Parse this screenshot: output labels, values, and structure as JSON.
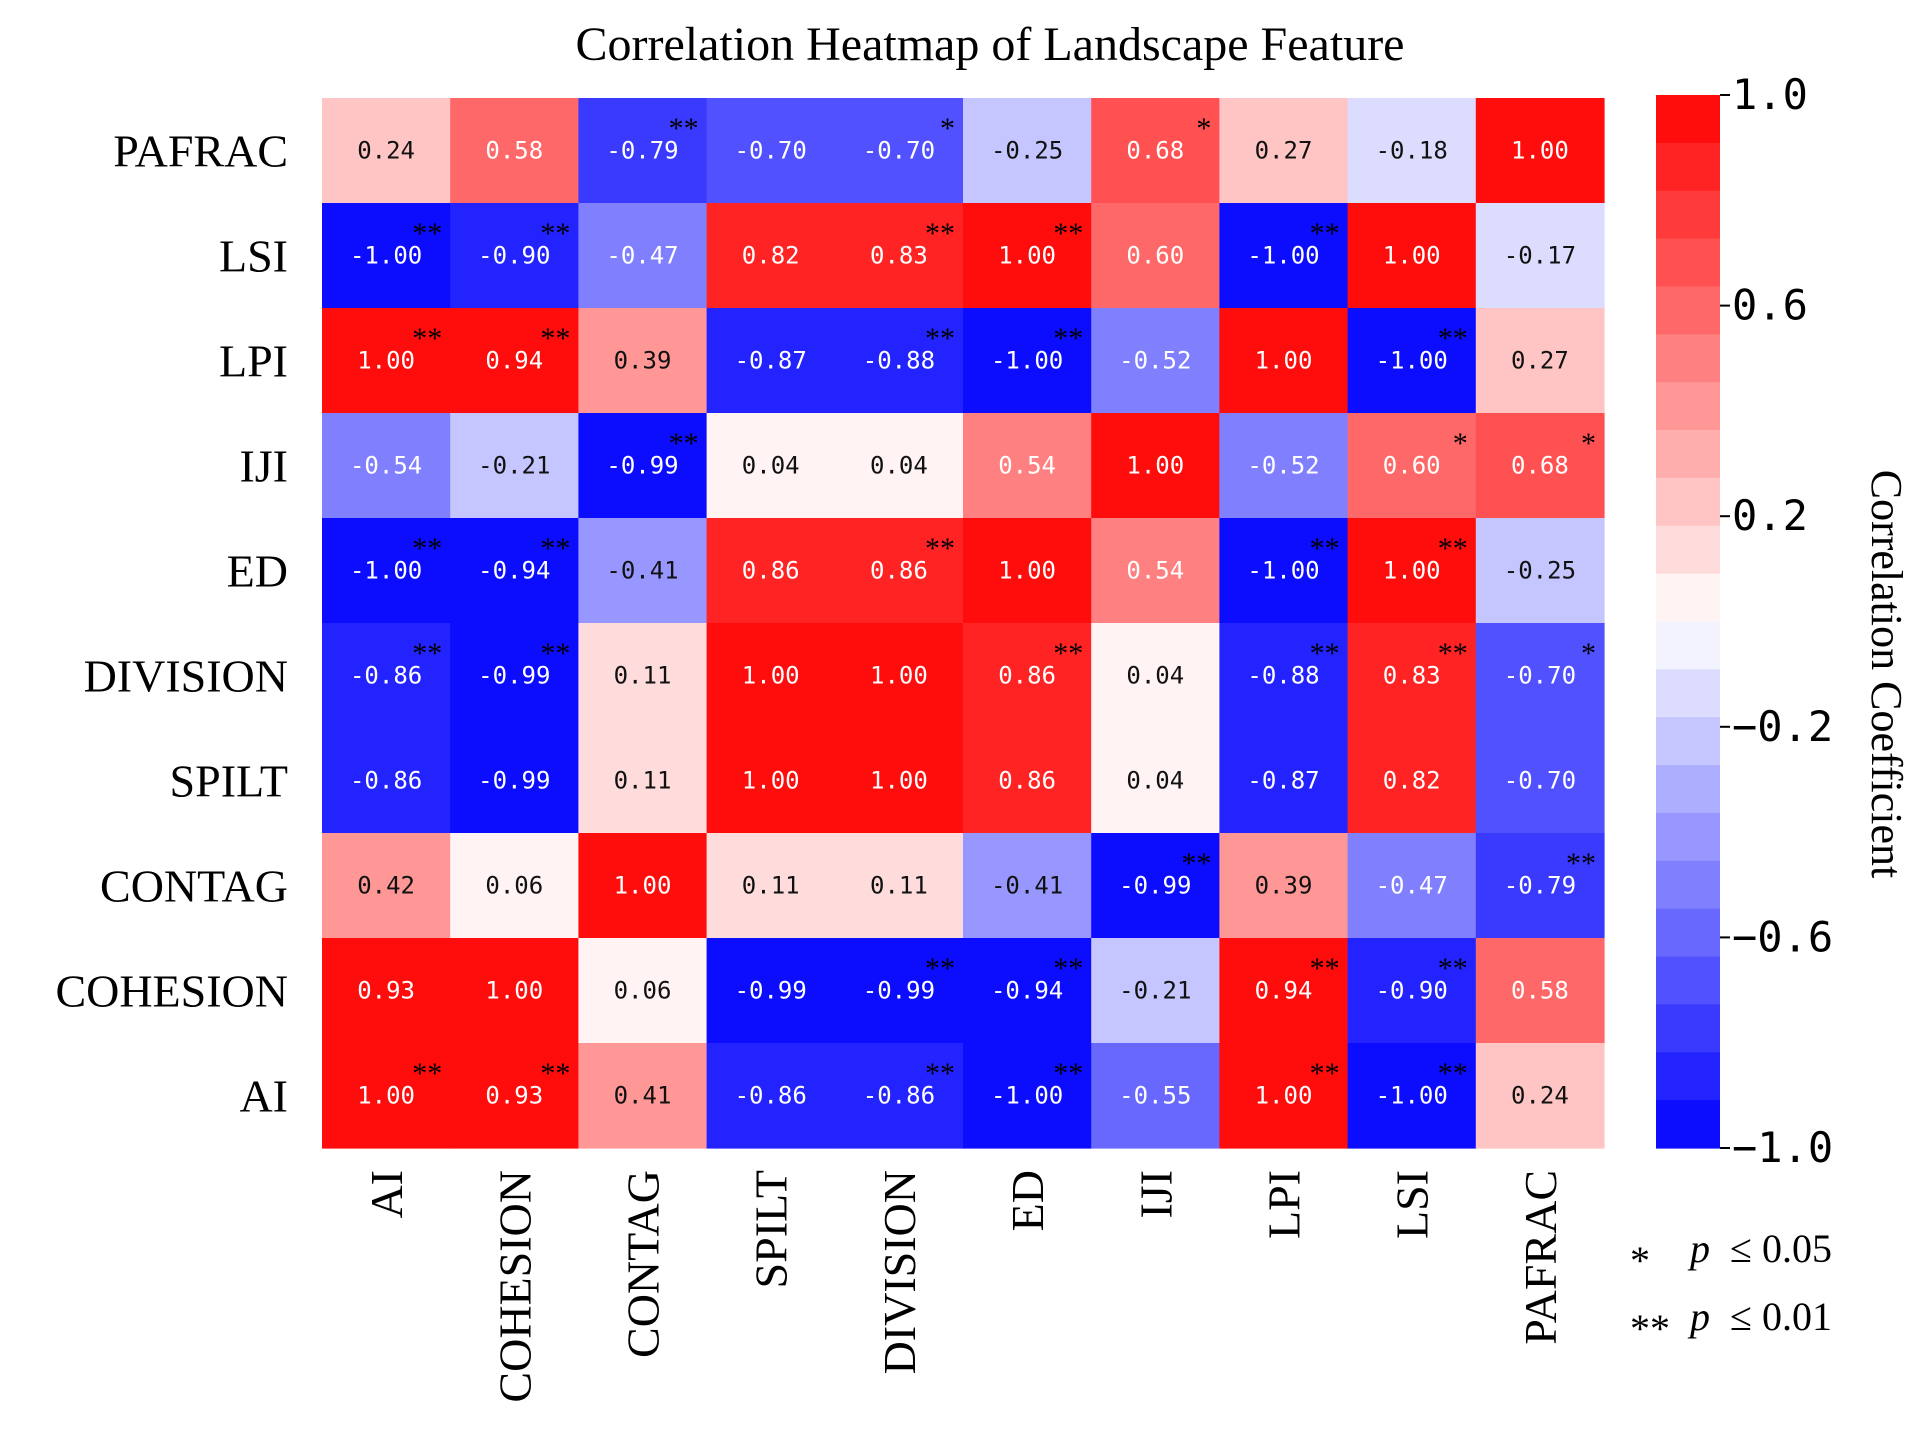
{
  "chart_data": {
    "type": "heatmap",
    "title": "Correlation Heatmap of  Landscape Feature",
    "x_labels": [
      "AI",
      "COHESION",
      "CONTAG",
      "SPILT",
      "DIVISION",
      "ED",
      "IJI",
      "LPI",
      "LSI",
      "PAFRAC"
    ],
    "y_labels": [
      "PAFRAC",
      "LSI",
      "LPI",
      "IJI",
      "ED",
      "DIVISION",
      "SPILT",
      "CONTAG",
      "COHESION",
      "AI"
    ],
    "values": [
      [
        0.24,
        0.58,
        -0.79,
        -0.7,
        -0.7,
        -0.25,
        0.68,
        0.27,
        -0.18,
        1.0
      ],
      [
        -1.0,
        -0.9,
        -0.47,
        0.82,
        0.83,
        1.0,
        0.6,
        -1.0,
        1.0,
        -0.17
      ],
      [
        1.0,
        0.94,
        0.39,
        -0.87,
        -0.88,
        -1.0,
        -0.52,
        1.0,
        -1.0,
        0.27
      ],
      [
        -0.54,
        -0.21,
        -0.99,
        0.04,
        0.04,
        0.54,
        1.0,
        -0.52,
        0.6,
        0.68
      ],
      [
        -1.0,
        -0.94,
        -0.41,
        0.86,
        0.86,
        1.0,
        0.54,
        -1.0,
        1.0,
        -0.25
      ],
      [
        -0.86,
        -0.99,
        0.11,
        1.0,
        1.0,
        0.86,
        0.04,
        -0.88,
        0.83,
        -0.7
      ],
      [
        -0.86,
        -0.99,
        0.11,
        1.0,
        1.0,
        0.86,
        0.04,
        -0.87,
        0.82,
        -0.7
      ],
      [
        0.42,
        0.06,
        1.0,
        0.11,
        0.11,
        -0.41,
        -0.99,
        0.39,
        -0.47,
        -0.79
      ],
      [
        0.93,
        1.0,
        0.06,
        -0.99,
        -0.99,
        -0.94,
        -0.21,
        0.94,
        -0.9,
        0.58
      ],
      [
        1.0,
        0.93,
        0.41,
        -0.86,
        -0.86,
        -1.0,
        -0.55,
        1.0,
        -1.0,
        0.24
      ]
    ],
    "value_labels": [
      [
        "0.24",
        "0.58",
        "-0.79",
        "-0.70",
        "-0.70",
        "-0.25",
        "0.68",
        "0.27",
        "-0.18",
        "1.00"
      ],
      [
        "-1.00",
        "-0.90",
        "-0.47",
        "0.82",
        "0.83",
        "1.00",
        "0.60",
        "-1.00",
        "1.00",
        "-0.17"
      ],
      [
        "1.00",
        "0.94",
        "0.39",
        "-0.87",
        "-0.88",
        "-1.00",
        "-0.52",
        "1.00",
        "-1.00",
        "0.27"
      ],
      [
        "-0.54",
        "-0.21",
        "-0.99",
        "0.04",
        "0.04",
        "0.54",
        "1.00",
        "-0.52",
        "0.60",
        "0.68"
      ],
      [
        "-1.00",
        "-0.94",
        "-0.41",
        "0.86",
        "0.86",
        "1.00",
        "0.54",
        "-1.00",
        "1.00",
        "-0.25"
      ],
      [
        "-0.86",
        "-0.99",
        "0.11",
        "1.00",
        "1.00",
        "0.86",
        "0.04",
        "-0.88",
        "0.83",
        "-0.70"
      ],
      [
        "-0.86",
        "-0.99",
        "0.11",
        "1.00",
        "1.00",
        "0.86",
        "0.04",
        "-0.87",
        "0.82",
        "-0.70"
      ],
      [
        "0.42",
        "0.06",
        "1.00",
        "0.11",
        "0.11",
        "-0.41",
        "-0.99",
        "0.39",
        "-0.47",
        "-0.79"
      ],
      [
        "0.93",
        "1.00",
        "0.06",
        "-0.99",
        "-0.99",
        "-0.94",
        "-0.21",
        "0.94",
        "-0.90",
        "0.58"
      ],
      [
        "1.00",
        "0.93",
        "0.41",
        "-0.86",
        "-0.86",
        "-1.00",
        "-0.55",
        "1.00",
        "-1.00",
        "0.24"
      ]
    ],
    "significance": [
      [
        "",
        "",
        "**",
        "",
        "*",
        "",
        "*",
        "",
        "",
        ""
      ],
      [
        "**",
        "**",
        "",
        "",
        "**",
        "**",
        "",
        "**",
        "",
        ""
      ],
      [
        "**",
        "**",
        "",
        "",
        "**",
        "**",
        "",
        "",
        "**",
        ""
      ],
      [
        "",
        "",
        "**",
        "",
        "",
        "",
        "",
        "",
        "*",
        "*"
      ],
      [
        "**",
        "**",
        "",
        "",
        "**",
        "",
        "",
        "**",
        "**",
        ""
      ],
      [
        "**",
        "**",
        "",
        "",
        "",
        "**",
        "",
        "**",
        "**",
        "*"
      ],
      [
        "",
        "",
        "",
        "",
        "",
        "",
        "",
        "",
        "",
        ""
      ],
      [
        "",
        "",
        "",
        "",
        "",
        "",
        "**",
        "",
        "",
        "**"
      ],
      [
        "",
        "",
        "",
        "",
        "**",
        "**",
        "",
        "**",
        "**",
        ""
      ],
      [
        "**",
        "**",
        "",
        "",
        "**",
        "**",
        "",
        "**",
        "**",
        ""
      ]
    ],
    "colorbar": {
      "title": "Correlation Coefficient",
      "range": [
        -1.0,
        1.0
      ],
      "ticks": [
        1.0,
        0.6,
        0.2,
        -0.2,
        -0.6,
        -1.0
      ],
      "tick_labels": [
        "1.0",
        "0.6",
        "0.2",
        "−0.2",
        "−0.6",
        "−1.0"
      ],
      "low_color": "#0000ff",
      "mid_color": "#ffffff",
      "high_color": "#ff0000",
      "levels": 22
    },
    "legend": [
      {
        "stars": "*",
        "p": "p",
        "text": "≤ 0.05"
      },
      {
        "stars": "**",
        "p": "p",
        "text": "≤ 0.01"
      }
    ]
  }
}
